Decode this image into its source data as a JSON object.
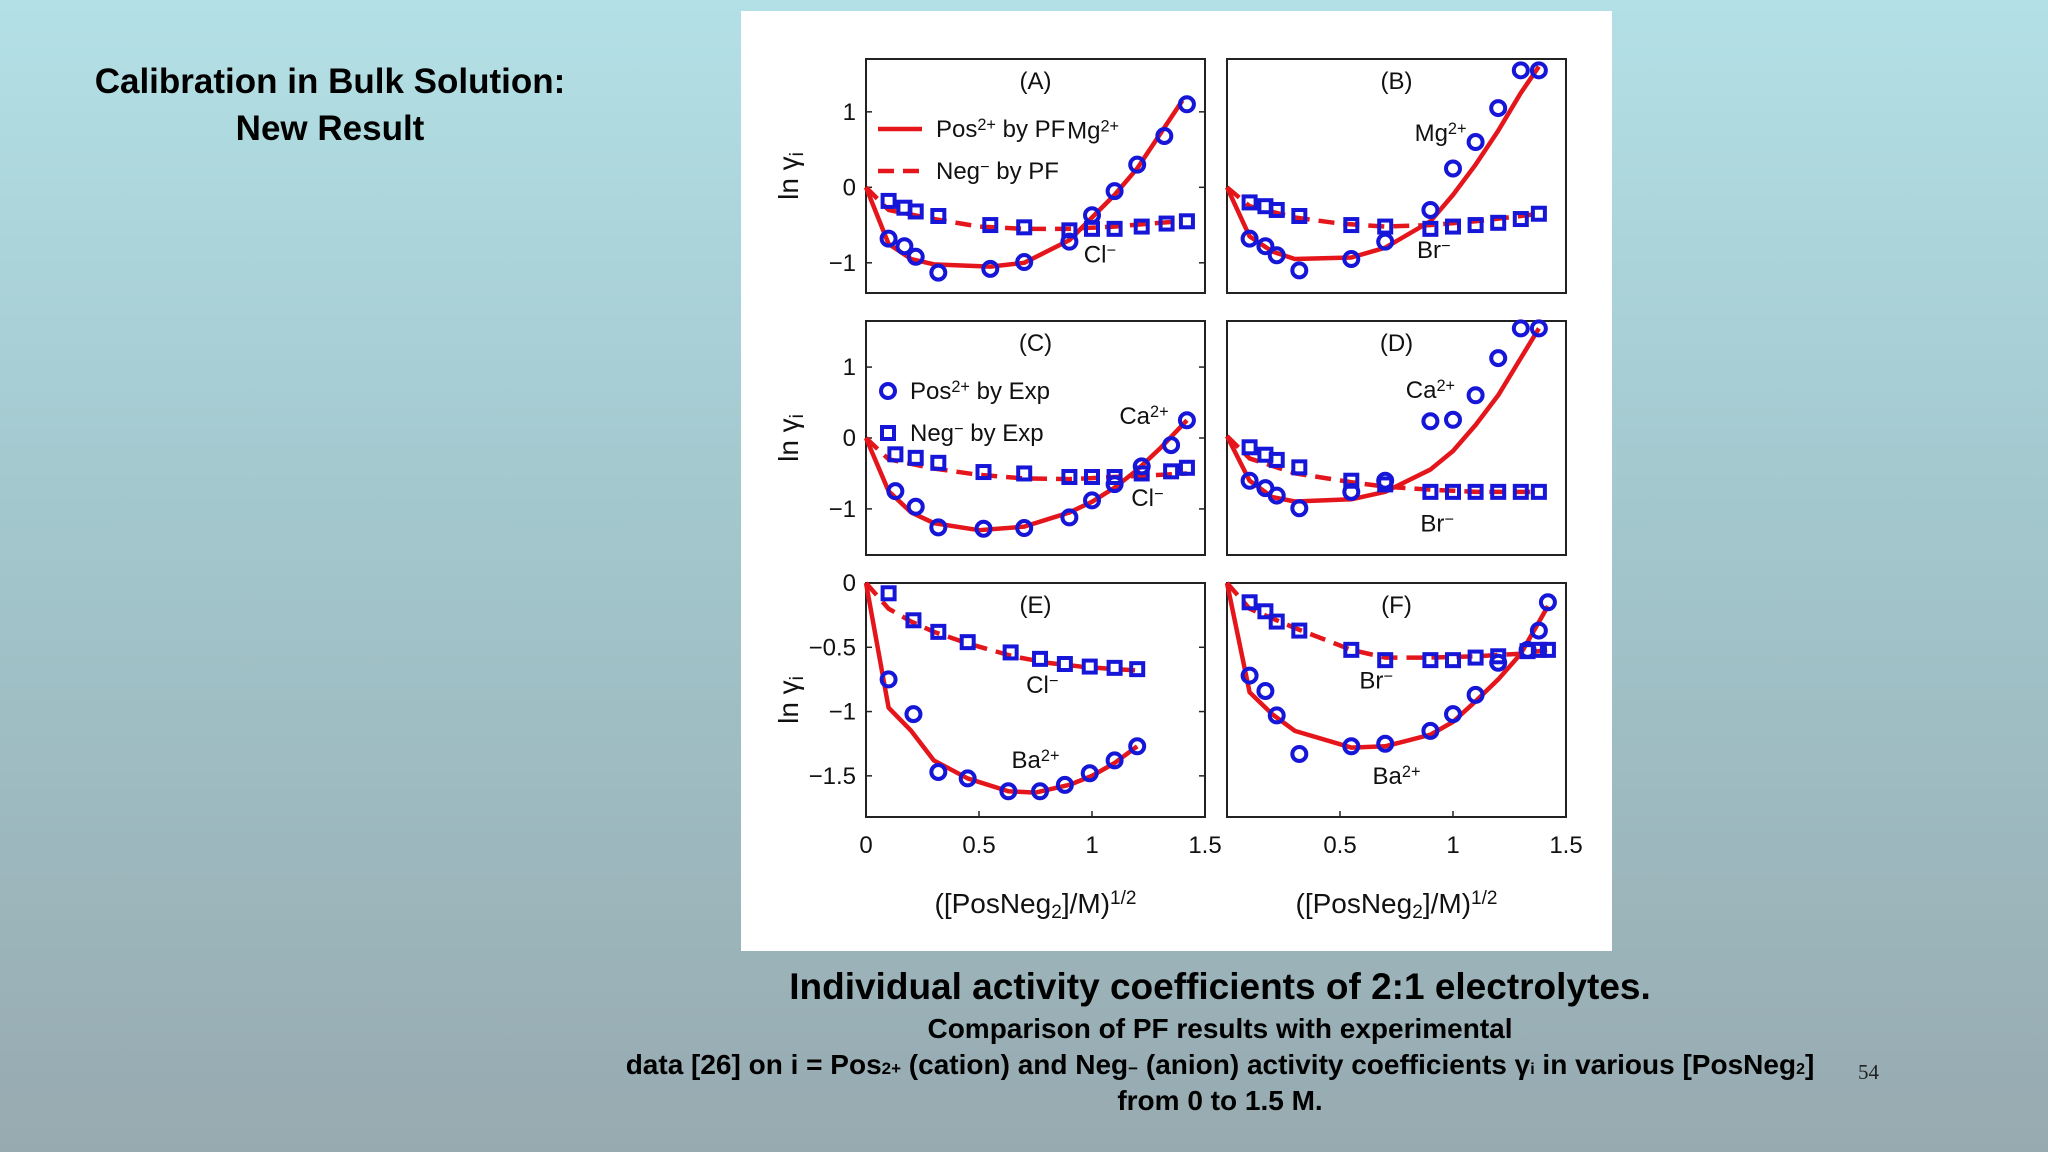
{
  "slide": {
    "title_line1": "Calibration in Bulk Solution:",
    "title_line2": "New Result",
    "page_number": "54"
  },
  "caption": {
    "title": "Individual activity coefficients of 2:1 electrolytes.",
    "line1": "Comparison of PF results with experimental",
    "line2_a": "data [26] on i = Pos",
    "line2_b": "2+",
    "line2_c": " (cation) and Neg",
    "line2_d": "−",
    "line2_e": " (anion) activity coefficients γ",
    "line2_f": "i",
    "line2_g": " in various [PosNeg",
    "line2_h": "2",
    "line2_i": "]",
    "line3": "from 0 to 1.5 M."
  },
  "colors": {
    "pf_line": "#e4161b",
    "exp_marker": "#1616d8"
  },
  "chart_data": [
    {
      "panel": "(A)",
      "type": "scatter",
      "ylabel": "ln γi",
      "xlim": [
        0,
        1.5
      ],
      "ylim": [
        -1.4,
        1.7
      ],
      "yticks": [
        1,
        0,
        -1
      ],
      "xticks": [],
      "cation_label": "Mg2+",
      "anion_label": "Cl−",
      "legend": [
        {
          "kind": "solid",
          "text": "Pos2+ by PF"
        },
        {
          "kind": "dash",
          "text": "Neg− by PF"
        }
      ],
      "series": [
        {
          "name": "Pos2+ by PF",
          "kind": "pf_pos",
          "x": [
            0,
            0.1,
            0.2,
            0.3,
            0.55,
            0.7,
            0.9,
            1.0,
            1.1,
            1.2,
            1.3,
            1.4
          ],
          "y": [
            0,
            -0.75,
            -0.95,
            -1.02,
            -1.05,
            -1.0,
            -0.7,
            -0.4,
            -0.1,
            0.25,
            0.7,
            1.15
          ]
        },
        {
          "name": "Neg− by PF",
          "kind": "pf_neg",
          "x": [
            0,
            0.1,
            0.3,
            0.5,
            0.7,
            0.9,
            1.1,
            1.3,
            1.4
          ],
          "y": [
            0,
            -0.3,
            -0.42,
            -0.52,
            -0.55,
            -0.55,
            -0.52,
            -0.47,
            -0.45
          ]
        },
        {
          "name": "Pos2+ by Exp",
          "kind": "exp_pos",
          "x": [
            0.1,
            0.17,
            0.22,
            0.32,
            0.55,
            0.7,
            0.9,
            1.0,
            1.1,
            1.2,
            1.32,
            1.42
          ],
          "y": [
            -0.68,
            -0.78,
            -0.92,
            -1.13,
            -1.08,
            -0.99,
            -0.72,
            -0.37,
            -0.05,
            0.3,
            0.68,
            1.1
          ]
        },
        {
          "name": "Neg− by Exp",
          "kind": "exp_neg",
          "x": [
            0.1,
            0.17,
            0.22,
            0.32,
            0.55,
            0.7,
            0.9,
            1.0,
            1.1,
            1.22,
            1.33,
            1.42
          ],
          "y": [
            -0.18,
            -0.27,
            -0.32,
            -0.38,
            -0.5,
            -0.53,
            -0.57,
            -0.55,
            -0.55,
            -0.52,
            -0.48,
            -0.45
          ]
        }
      ]
    },
    {
      "panel": "(B)",
      "type": "scatter",
      "xlim": [
        0,
        1.5
      ],
      "ylim": [
        -1.4,
        1.7
      ],
      "yticks": [],
      "xticks": [],
      "cation_label": "Mg2+",
      "anion_label": "Br−",
      "legend": [],
      "series": [
        {
          "name": "Pos2+ by PF",
          "kind": "pf_pos",
          "x": [
            0,
            0.1,
            0.2,
            0.3,
            0.55,
            0.7,
            0.9,
            1.0,
            1.1,
            1.2,
            1.3,
            1.38
          ],
          "y": [
            0,
            -0.65,
            -0.85,
            -0.95,
            -0.93,
            -0.8,
            -0.45,
            -0.1,
            0.3,
            0.75,
            1.25,
            1.6
          ]
        },
        {
          "name": "Neg− by PF",
          "kind": "pf_neg",
          "x": [
            0,
            0.1,
            0.3,
            0.5,
            0.7,
            0.9,
            1.1,
            1.3,
            1.38
          ],
          "y": [
            0,
            -0.25,
            -0.4,
            -0.48,
            -0.52,
            -0.5,
            -0.45,
            -0.38,
            -0.35
          ]
        },
        {
          "name": "Pos2+ by Exp",
          "kind": "exp_pos",
          "x": [
            0.1,
            0.17,
            0.22,
            0.32,
            0.55,
            0.7,
            0.9,
            1.0,
            1.1,
            1.2,
            1.3,
            1.38
          ],
          "y": [
            -0.68,
            -0.78,
            -0.9,
            -1.1,
            -0.95,
            -0.72,
            -0.3,
            0.25,
            0.6,
            1.05,
            1.55,
            1.55
          ]
        },
        {
          "name": "Neg− by Exp",
          "kind": "exp_neg",
          "x": [
            0.1,
            0.17,
            0.22,
            0.32,
            0.55,
            0.7,
            0.9,
            1.0,
            1.1,
            1.2,
            1.3,
            1.38
          ],
          "y": [
            -0.2,
            -0.25,
            -0.3,
            -0.38,
            -0.5,
            -0.52,
            -0.55,
            -0.52,
            -0.5,
            -0.47,
            -0.42,
            -0.35
          ]
        }
      ]
    },
    {
      "panel": "(C)",
      "type": "scatter",
      "ylabel": "ln γi",
      "xlim": [
        0,
        1.5
      ],
      "ylim": [
        -1.65,
        1.65
      ],
      "yticks": [
        1,
        0,
        -1
      ],
      "xticks": [],
      "cation_label": "Ca2+",
      "anion_label": "Cl−",
      "legend": [
        {
          "kind": "circle",
          "text": "Pos2+ by Exp"
        },
        {
          "kind": "square",
          "text": "Neg− by Exp"
        }
      ],
      "series": [
        {
          "name": "Pos2+ by PF",
          "kind": "pf_pos",
          "x": [
            0,
            0.1,
            0.2,
            0.3,
            0.5,
            0.7,
            0.9,
            1.0,
            1.1,
            1.2,
            1.3,
            1.42
          ],
          "y": [
            0,
            -0.75,
            -1.05,
            -1.2,
            -1.3,
            -1.25,
            -1.05,
            -0.9,
            -0.7,
            -0.45,
            -0.15,
            0.25
          ]
        },
        {
          "name": "Neg− by PF",
          "kind": "pf_neg",
          "x": [
            0,
            0.1,
            0.3,
            0.5,
            0.7,
            0.9,
            1.1,
            1.3,
            1.42
          ],
          "y": [
            0,
            -0.3,
            -0.43,
            -0.52,
            -0.57,
            -0.58,
            -0.55,
            -0.52,
            -0.5
          ]
        },
        {
          "name": "Pos2+ by Exp",
          "kind": "exp_pos",
          "x": [
            0.13,
            0.22,
            0.32,
            0.52,
            0.7,
            0.9,
            1.0,
            1.1,
            1.22,
            1.35,
            1.42
          ],
          "y": [
            -0.75,
            -0.97,
            -1.26,
            -1.28,
            -1.27,
            -1.12,
            -0.88,
            -0.65,
            -0.4,
            -0.1,
            0.25
          ]
        },
        {
          "name": "Neg− by Exp",
          "kind": "exp_neg",
          "x": [
            0.13,
            0.22,
            0.32,
            0.52,
            0.7,
            0.9,
            1.0,
            1.1,
            1.22,
            1.35,
            1.42
          ],
          "y": [
            -0.23,
            -0.28,
            -0.35,
            -0.48,
            -0.5,
            -0.55,
            -0.55,
            -0.55,
            -0.5,
            -0.47,
            -0.42
          ]
        }
      ]
    },
    {
      "panel": "(D)",
      "type": "scatter",
      "xlim": [
        0,
        1.5
      ],
      "ylim": [
        -1.6,
        1.55
      ],
      "yticks": [],
      "xticks": [],
      "cation_label": "Ca2+",
      "anion_label": "Br−",
      "legend": [],
      "series": [
        {
          "name": "Pos2+ by PF",
          "kind": "pf_pos",
          "x": [
            0,
            0.1,
            0.2,
            0.3,
            0.55,
            0.7,
            0.9,
            1.0,
            1.1,
            1.2,
            1.3,
            1.38
          ],
          "y": [
            0,
            -0.6,
            -0.82,
            -0.88,
            -0.85,
            -0.75,
            -0.45,
            -0.2,
            0.15,
            0.55,
            1.05,
            1.45
          ]
        },
        {
          "name": "Neg− by PF",
          "kind": "pf_neg",
          "x": [
            0,
            0.1,
            0.3,
            0.55,
            0.7,
            0.9,
            1.1,
            1.3,
            1.38
          ],
          "y": [
            0,
            -0.3,
            -0.5,
            -0.62,
            -0.68,
            -0.72,
            -0.75,
            -0.75,
            -0.75
          ]
        },
        {
          "name": "Pos2+ by Exp",
          "kind": "exp_pos",
          "x": [
            0.1,
            0.17,
            0.22,
            0.32,
            0.55,
            0.7,
            0.9,
            1.0,
            1.1,
            1.2,
            1.3,
            1.38
          ],
          "y": [
            -0.6,
            -0.7,
            -0.8,
            -0.97,
            -0.75,
            -0.6,
            0.2,
            0.22,
            0.55,
            1.05,
            1.45,
            1.45
          ]
        },
        {
          "name": "Neg− by Exp",
          "kind": "exp_neg",
          "x": [
            0.1,
            0.17,
            0.22,
            0.32,
            0.55,
            0.7,
            0.9,
            1.0,
            1.1,
            1.2,
            1.3,
            1.38
          ],
          "y": [
            -0.15,
            -0.25,
            -0.32,
            -0.42,
            -0.6,
            -0.65,
            -0.75,
            -0.75,
            -0.75,
            -0.75,
            -0.75,
            -0.75
          ]
        }
      ]
    },
    {
      "panel": "(E)",
      "type": "scatter",
      "ylabel": "ln γi",
      "xlabel": "([PosNeg2]/M)1/2",
      "xlim": [
        0,
        1.5
      ],
      "ylim": [
        -1.82,
        0
      ],
      "yticks": [
        0,
        -0.5,
        -1,
        -1.5
      ],
      "xticks": [
        0,
        0.5,
        1,
        1.5
      ],
      "cation_label": "Ba2+",
      "anion_label": "Cl−",
      "legend": [],
      "series": [
        {
          "name": "Pos2+ by PF",
          "kind": "pf_pos",
          "x": [
            0,
            0.1,
            0.2,
            0.3,
            0.45,
            0.63,
            0.75,
            0.9,
            1.0,
            1.1,
            1.2
          ],
          "y": [
            0,
            -0.97,
            -1.15,
            -1.38,
            -1.52,
            -1.62,
            -1.63,
            -1.57,
            -1.5,
            -1.4,
            -1.27
          ]
        },
        {
          "name": "Neg− by PF",
          "kind": "pf_neg",
          "x": [
            0,
            0.1,
            0.2,
            0.3,
            0.45,
            0.65,
            0.8,
            0.95,
            1.1,
            1.2
          ],
          "y": [
            0,
            -0.2,
            -0.3,
            -0.38,
            -0.47,
            -0.57,
            -0.62,
            -0.65,
            -0.67,
            -0.68
          ]
        },
        {
          "name": "Pos2+ by Exp",
          "kind": "exp_pos",
          "x": [
            0.1,
            0.21,
            0.32,
            0.45,
            0.63,
            0.77,
            0.88,
            0.99,
            1.1,
            1.2
          ],
          "y": [
            -0.75,
            -1.02,
            -1.47,
            -1.52,
            -1.62,
            -1.62,
            -1.57,
            -1.48,
            -1.38,
            -1.27
          ]
        },
        {
          "name": "Neg− by Exp",
          "kind": "exp_neg",
          "x": [
            0.1,
            0.21,
            0.32,
            0.45,
            0.64,
            0.77,
            0.88,
            0.99,
            1.1,
            1.2
          ],
          "y": [
            -0.08,
            -0.29,
            -0.38,
            -0.46,
            -0.54,
            -0.59,
            -0.63,
            -0.65,
            -0.66,
            -0.67
          ]
        }
      ]
    },
    {
      "panel": "(F)",
      "type": "scatter",
      "xlabel": "([PosNeg2]/M)1/2",
      "xlim": [
        0,
        1.5
      ],
      "ylim": [
        -1.82,
        0
      ],
      "yticks": [],
      "xticks": [
        0.5,
        1,
        1.5
      ],
      "cation_label": "Ba2+",
      "anion_label": "Br−",
      "legend": [],
      "series": [
        {
          "name": "Pos2+ by PF",
          "kind": "pf_pos",
          "x": [
            0,
            0.1,
            0.2,
            0.3,
            0.55,
            0.7,
            0.9,
            1.0,
            1.1,
            1.2,
            1.3,
            1.42
          ],
          "y": [
            0,
            -0.85,
            -1.02,
            -1.15,
            -1.28,
            -1.27,
            -1.18,
            -1.08,
            -0.92,
            -0.75,
            -0.55,
            -0.18
          ]
        },
        {
          "name": "Neg− by PF",
          "kind": "pf_neg",
          "x": [
            0,
            0.1,
            0.3,
            0.55,
            0.7,
            0.9,
            1.1,
            1.3,
            1.42
          ],
          "y": [
            0,
            -0.2,
            -0.35,
            -0.52,
            -0.58,
            -0.58,
            -0.57,
            -0.55,
            -0.52
          ]
        },
        {
          "name": "Pos2+ by Exp",
          "kind": "exp_pos",
          "x": [
            0.1,
            0.17,
            0.22,
            0.32,
            0.55,
            0.7,
            0.9,
            1.0,
            1.1,
            1.2,
            1.33,
            1.38,
            1.42
          ],
          "y": [
            -0.72,
            -0.84,
            -1.03,
            -1.33,
            -1.27,
            -1.25,
            -1.15,
            -1.02,
            -0.87,
            -0.62,
            -0.52,
            -0.37,
            -0.15
          ]
        },
        {
          "name": "Neg− by Exp",
          "kind": "exp_neg",
          "x": [
            0.1,
            0.17,
            0.22,
            0.32,
            0.55,
            0.7,
            0.9,
            1.0,
            1.1,
            1.2,
            1.33,
            1.38,
            1.42
          ],
          "y": [
            -0.15,
            -0.22,
            -0.3,
            -0.37,
            -0.52,
            -0.6,
            -0.6,
            -0.6,
            -0.58,
            -0.57,
            -0.53,
            -0.52,
            -0.52
          ]
        }
      ]
    }
  ]
}
